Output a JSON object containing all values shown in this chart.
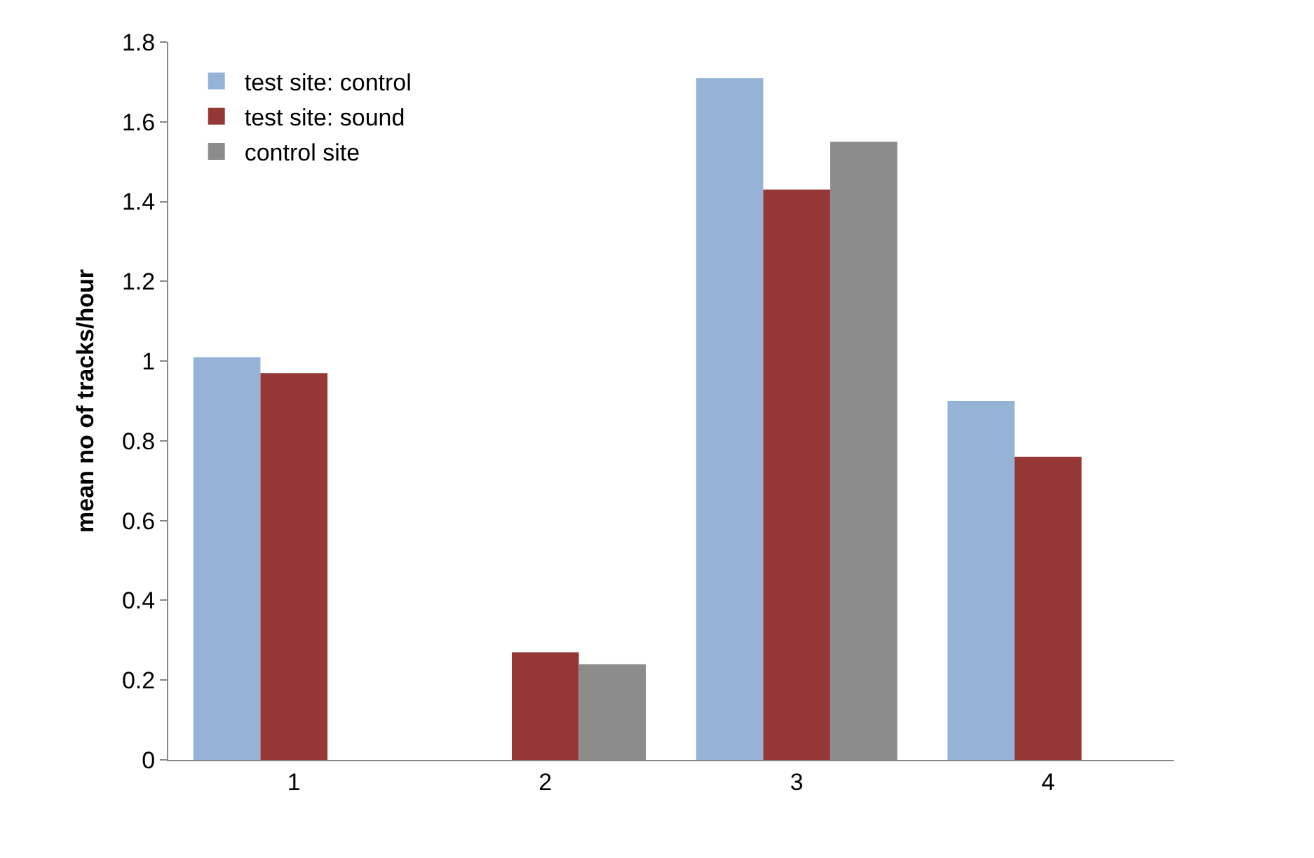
{
  "chart_data": {
    "type": "bar",
    "ylabel": "mean no of tracks/hour",
    "categories": [
      "1",
      "2",
      "3",
      "4"
    ],
    "series": [
      {
        "name": "test site: control",
        "color": "#95b3d7",
        "values": [
          1.01,
          null,
          1.71,
          0.9
        ]
      },
      {
        "name": "test site: sound",
        "color": "#953735",
        "values": [
          0.97,
          0.27,
          1.43,
          0.76
        ]
      },
      {
        "name": "control site",
        "color": "#8c8c8c",
        "values": [
          null,
          0.24,
          1.55,
          null
        ]
      }
    ],
    "ylim": [
      0,
      1.8
    ],
    "yticks": [
      0,
      0.2,
      0.4,
      0.6,
      0.8,
      1,
      1.2,
      1.4,
      1.6,
      1.8
    ],
    "legend": "top left"
  }
}
